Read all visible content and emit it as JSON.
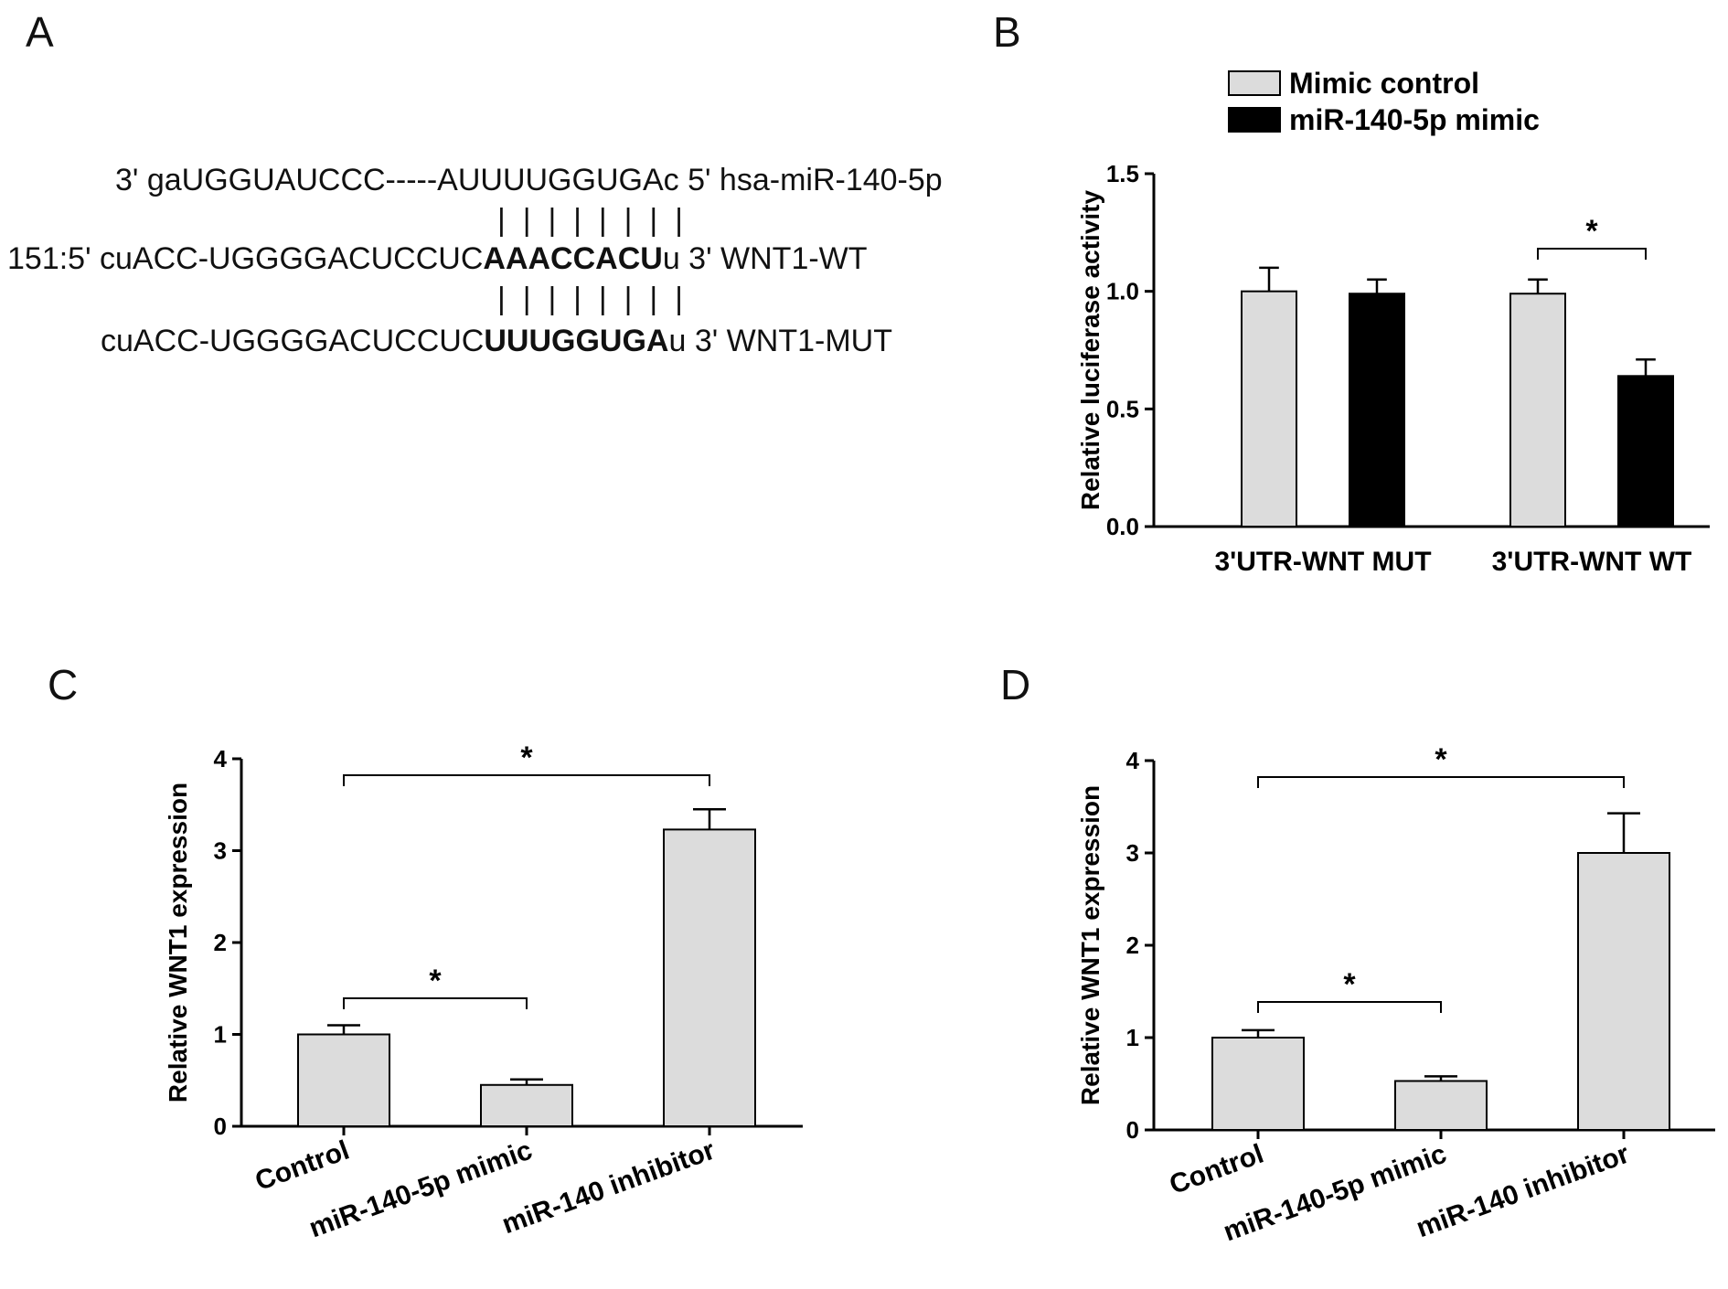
{
  "panels": {
    "a": "A",
    "b": "B",
    "c": "C",
    "d": "D"
  },
  "sequence": {
    "mirna": "3' gaUGGUAUCCC-----AUUUUGGUGAc 5' hsa-miR-140-5p",
    "pairing": "|  |  |  |  |  |  |  |",
    "wt_prefix": "151:5' cuACC-UGGGGACUCCUC",
    "wt_bold": "AAACCACU",
    "wt_suffix": "u 3' WNT1-WT",
    "mut_prefix": "cuACC-UGGGGACUCCUC",
    "mut_bold": "UUUGGUGA",
    "mut_suffix": "u 3' WNT1-MUT"
  },
  "colors": {
    "light_bar": "#dcdcdc",
    "dark_bar": "#000000",
    "axis": "#000000"
  },
  "chart_data": [
    {
      "id": "B",
      "type": "bar",
      "categories": [
        "3'UTR-WNT MUT",
        "3'UTR-WNT WT"
      ],
      "series": [
        {
          "name": "Mimic control",
          "values": [
            1.0,
            0.99
          ],
          "errors": [
            0.1,
            0.06
          ],
          "color": "#dcdcdc"
        },
        {
          "name": "miR-140-5p mimic",
          "values": [
            0.99,
            0.64
          ],
          "errors": [
            0.06,
            0.07
          ],
          "color": "#000000"
        }
      ],
      "ylabel": "Relative luciferase activity",
      "ylim": [
        0,
        1.5
      ],
      "yticks": [
        "0.0",
        "0.5",
        "1.0",
        "1.5"
      ],
      "legend": "top",
      "significance": [
        {
          "label": "*",
          "between": "3'UTR-WNT WT groups"
        }
      ]
    },
    {
      "id": "C",
      "type": "bar",
      "categories": [
        "Control",
        "miR-140-5p mimic",
        "miR-140 inhibitor"
      ],
      "values": [
        1.0,
        0.45,
        3.23
      ],
      "errors": [
        0.1,
        0.06,
        0.22
      ],
      "color": "#dcdcdc",
      "ylabel": "Relative WNT1 expression",
      "ylim": [
        0,
        4
      ],
      "yticks": [
        "0",
        "1",
        "2",
        "3",
        "4"
      ],
      "significance": [
        {
          "label": "*",
          "from": 0,
          "to": 1
        },
        {
          "label": "*",
          "from": 0,
          "to": 2
        }
      ]
    },
    {
      "id": "D",
      "type": "bar",
      "categories": [
        "Control",
        "miR-140-5p mimic",
        "miR-140 inhibitor"
      ],
      "values": [
        1.0,
        0.53,
        3.0
      ],
      "errors": [
        0.08,
        0.05,
        0.43
      ],
      "color": "#dcdcdc",
      "ylabel": "Relative WNT1 expression",
      "ylim": [
        0,
        4
      ],
      "yticks": [
        "0",
        "1",
        "2",
        "3",
        "4"
      ],
      "significance": [
        {
          "label": "*",
          "from": 0,
          "to": 1
        },
        {
          "label": "*",
          "from": 0,
          "to": 2
        }
      ]
    }
  ]
}
